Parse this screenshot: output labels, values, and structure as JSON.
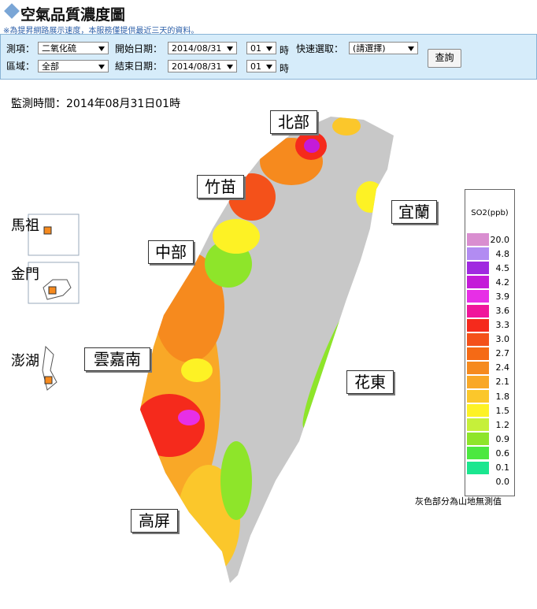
{
  "header": {
    "title": "空氣品質濃度圖",
    "note": "※為提昇網路展示速度，本服務僅提供最近三天的資料。"
  },
  "form": {
    "row1": {
      "item_label": "測項：",
      "item_value": "二氧化硫",
      "start_label": "開始日期：",
      "start_date": "2014/08/31",
      "start_hour": "01",
      "hour_unit": "時",
      "quick_label": "快速選取：",
      "quick_value": "(請選擇)"
    },
    "row2": {
      "area_label": "區域：",
      "area_value": "全部",
      "end_label": "結束日期：",
      "end_date": "2014/08/31",
      "end_hour": "01",
      "hour_unit": "時"
    },
    "button": "查詢"
  },
  "timestamp": "監測時間：2014年08月31日01時",
  "regions": {
    "north": "北部",
    "zhumiao": "竹苗",
    "yilan": "宜蘭",
    "central": "中部",
    "yunjianan": "雲嘉南",
    "huadong": "花東",
    "gaoping": "高屏",
    "matsu": "馬祖",
    "kinmen": "金門",
    "penghu": "澎湖"
  },
  "legend": {
    "title": "SO2(ppb)",
    "items": [
      {
        "label": "20.0",
        "color": "#d98ed0"
      },
      {
        "label": "4.8",
        "color": "#b28cf2"
      },
      {
        "label": "4.5",
        "color": "#a02ae0"
      },
      {
        "label": "4.2",
        "color": "#c41bd8"
      },
      {
        "label": "3.9",
        "color": "#e72fe6"
      },
      {
        "label": "3.6",
        "color": "#f0169b"
      },
      {
        "label": "3.3",
        "color": "#f52a1c"
      },
      {
        "label": "3.0",
        "color": "#f4511a"
      },
      {
        "label": "2.7",
        "color": "#f56a15"
      },
      {
        "label": "2.4",
        "color": "#f68a1e"
      },
      {
        "label": "2.1",
        "color": "#f9a827"
      },
      {
        "label": "1.8",
        "color": "#fbc72b"
      },
      {
        "label": "1.5",
        "color": "#fdf225"
      },
      {
        "label": "1.2",
        "color": "#c6f03a"
      },
      {
        "label": "0.9",
        "color": "#8ee52a"
      },
      {
        "label": "0.6",
        "color": "#4ce840"
      },
      {
        "label": "0.1",
        "color": "#1be68f"
      },
      {
        "label": "0.0",
        "color": "#ffffff"
      }
    ]
  },
  "footnote": "灰色部分為山地無測值"
}
